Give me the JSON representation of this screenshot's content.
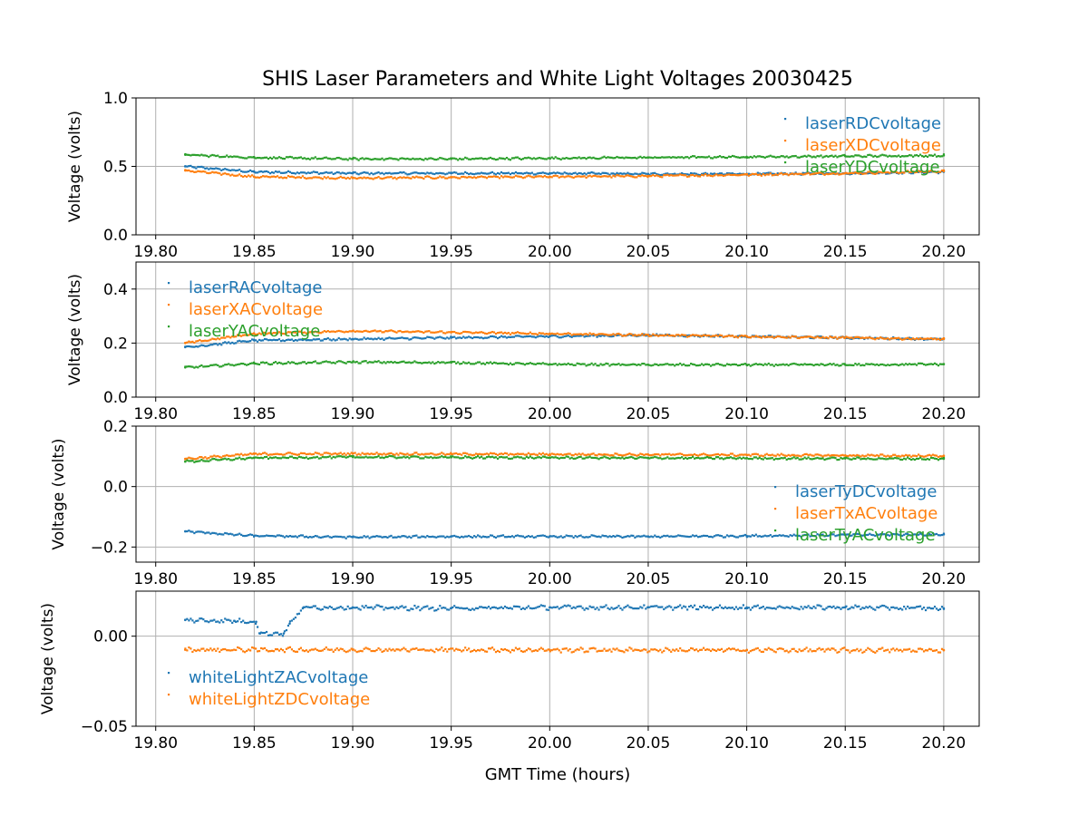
{
  "chart_data": {
    "title": "SHIS Laser Parameters and White Light Voltages 20030425",
    "xlabel": "GMT Time (hours)",
    "x_range": [
      19.815,
      20.2
    ],
    "x_ticks": [
      19.8,
      19.85,
      19.9,
      19.95,
      20.0,
      20.05,
      20.1,
      20.15,
      20.2
    ],
    "x_tick_labels": [
      "19.80",
      "19.85",
      "19.90",
      "19.95",
      "20.00",
      "20.05",
      "20.10",
      "20.15",
      "20.20"
    ],
    "colors": {
      "blue": "#1f77b4",
      "orange": "#ff7f0e",
      "green": "#2ca02c"
    },
    "subplots": [
      {
        "type": "scatter",
        "ylabel": "Voltage (volts)",
        "ylim": [
          0.0,
          1.0
        ],
        "y_ticks": [
          0.0,
          0.5,
          1.0
        ],
        "y_tick_labels": [
          "0.0",
          "0.5",
          "1.0"
        ],
        "legend_loc": "upper-right",
        "series": [
          {
            "name": "laserRDCvoltage",
            "color": "#1f77b4",
            "x": [
              19.815,
              19.85,
              19.9,
              19.95,
              20.0,
              20.05,
              20.1,
              20.15,
              20.2
            ],
            "y": [
              0.5,
              0.46,
              0.45,
              0.45,
              0.45,
              0.445,
              0.445,
              0.45,
              0.46
            ]
          },
          {
            "name": "laserXDCvoltage",
            "color": "#ff7f0e",
            "x": [
              19.815,
              19.85,
              19.9,
              19.95,
              20.0,
              20.05,
              20.1,
              20.15,
              20.2
            ],
            "y": [
              0.47,
              0.425,
              0.415,
              0.42,
              0.425,
              0.43,
              0.44,
              0.45,
              0.465
            ]
          },
          {
            "name": "laserYDCvoltage",
            "color": "#2ca02c",
            "x": [
              19.815,
              19.85,
              19.9,
              19.95,
              20.0,
              20.05,
              20.1,
              20.15,
              20.2
            ],
            "y": [
              0.585,
              0.565,
              0.555,
              0.555,
              0.56,
              0.565,
              0.57,
              0.575,
              0.58
            ]
          }
        ]
      },
      {
        "type": "scatter",
        "ylabel": "Voltage (volts)",
        "ylim": [
          0.0,
          0.5
        ],
        "y_ticks": [
          0.0,
          0.2,
          0.4
        ],
        "y_tick_labels": [
          "0.0",
          "0.2",
          "0.4"
        ],
        "legend_loc": "upper-left",
        "series": [
          {
            "name": "laserRACvoltage",
            "color": "#1f77b4",
            "x": [
              19.815,
              19.85,
              19.9,
              19.95,
              20.0,
              20.05,
              20.1,
              20.15,
              20.2
            ],
            "y": [
              0.185,
              0.21,
              0.215,
              0.22,
              0.225,
              0.23,
              0.225,
              0.22,
              0.215
            ]
          },
          {
            "name": "laserXACvoltage",
            "color": "#ff7f0e",
            "x": [
              19.815,
              19.85,
              19.9,
              19.95,
              20.0,
              20.05,
              20.1,
              20.15,
              20.2
            ],
            "y": [
              0.2,
              0.235,
              0.245,
              0.24,
              0.235,
              0.23,
              0.225,
              0.22,
              0.215
            ]
          },
          {
            "name": "laserYACvoltage",
            "color": "#2ca02c",
            "x": [
              19.815,
              19.85,
              19.9,
              19.95,
              20.0,
              20.05,
              20.1,
              20.15,
              20.2
            ],
            "y": [
              0.11,
              0.125,
              0.13,
              0.128,
              0.122,
              0.12,
              0.12,
              0.12,
              0.122
            ]
          }
        ]
      },
      {
        "type": "scatter",
        "ylabel": "Voltage (volts)",
        "ylim": [
          -0.25,
          0.2
        ],
        "y_ticks": [
          -0.2,
          0.0,
          0.2
        ],
        "y_tick_labels": [
          "−0.2",
          "0.0",
          "0.2"
        ],
        "legend_loc": "lower-right",
        "series": [
          {
            "name": "laserTyDCvoltage",
            "color": "#1f77b4",
            "x": [
              19.815,
              19.85,
              19.9,
              19.95,
              20.0,
              20.05,
              20.1,
              20.15,
              20.2
            ],
            "y": [
              -0.148,
              -0.163,
              -0.167,
              -0.165,
              -0.165,
              -0.165,
              -0.163,
              -0.16,
              -0.158
            ]
          },
          {
            "name": "laserTxACvoltage",
            "color": "#ff7f0e",
            "x": [
              19.815,
              19.85,
              19.9,
              19.95,
              20.0,
              20.05,
              20.1,
              20.15,
              20.2
            ],
            "y": [
              0.092,
              0.108,
              0.109,
              0.108,
              0.107,
              0.106,
              0.105,
              0.103,
              0.102
            ]
          },
          {
            "name": "laserTyACvoltage",
            "color": "#2ca02c",
            "x": [
              19.815,
              19.85,
              19.9,
              19.95,
              20.0,
              20.05,
              20.1,
              20.15,
              20.2
            ],
            "y": [
              0.083,
              0.095,
              0.098,
              0.097,
              0.096,
              0.095,
              0.094,
              0.093,
              0.092
            ]
          }
        ]
      },
      {
        "type": "scatter",
        "ylabel": "Voltage (volts)",
        "ylim": [
          -0.05,
          0.025
        ],
        "y_ticks": [
          -0.05,
          0.0
        ],
        "y_tick_labels": [
          "−0.05",
          "0.00"
        ],
        "legend_loc": "lower-left",
        "series": [
          {
            "name": "whiteLightZACvoltage",
            "color": "#1f77b4",
            "x": [
              19.815,
              19.84,
              19.851,
              19.853,
              19.865,
              19.868,
              19.875,
              19.9,
              19.95,
              20.0,
              20.05,
              20.1,
              20.15,
              20.2
            ],
            "y": [
              0.009,
              0.0085,
              0.008,
              0.0015,
              0.0015,
              0.007,
              0.016,
              0.016,
              0.0155,
              0.016,
              0.016,
              0.016,
              0.016,
              0.0155
            ]
          },
          {
            "name": "whiteLightZDCvoltage",
            "color": "#ff7f0e",
            "x": [
              19.815,
              19.9,
              20.0,
              20.1,
              20.2
            ],
            "y": [
              -0.0075,
              -0.0075,
              -0.0076,
              -0.0077,
              -0.0078
            ]
          }
        ]
      }
    ]
  }
}
